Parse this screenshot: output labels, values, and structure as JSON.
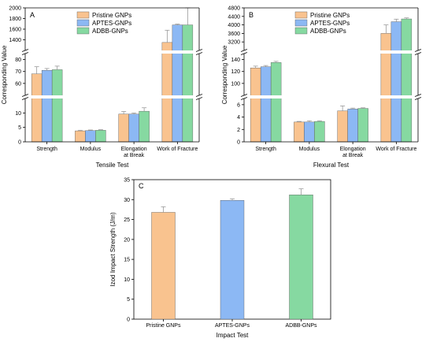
{
  "colors": {
    "Pristine GNPs": "#F9C38F",
    "APTES-GNPs": "#8CB8F4",
    "ADBB-GNPs": "#86D9A1",
    "axis": "#000000",
    "error": "#9a9a9a"
  },
  "chart_data": [
    {
      "type": "bar",
      "panel_label": "A",
      "xlabel": "Tensile Test",
      "ylabel": "Corresponding Value",
      "categories": [
        "Strength",
        "Modulus",
        "Elongation at Break",
        "Work of Fracture"
      ],
      "category_lines": [
        [
          "Strength"
        ],
        [
          "Modulus"
        ],
        [
          "Elongation",
          "at Break"
        ],
        [
          "Work of Fracture"
        ]
      ],
      "axis_break": true,
      "segments": [
        {
          "ylim": [
            0,
            15
          ],
          "ticks": [
            0,
            5,
            10
          ]
        },
        {
          "ylim": [
            50,
            85
          ],
          "ticks": [
            60,
            70,
            80
          ]
        },
        {
          "ylim": [
            1200,
            2000
          ],
          "ticks": [
            1400,
            1600,
            1800,
            2000
          ]
        }
      ],
      "legend": [
        "Pristine GNPs",
        "APTES-GNPs",
        "ADBB-GNPs"
      ],
      "legend_position": "top-center",
      "series": [
        {
          "name": "Pristine GNPs",
          "values": [
            68,
            3.8,
            9.6,
            1350
          ],
          "errors": [
            6,
            0.2,
            0.9,
            230
          ]
        },
        {
          "name": "APTES-GNPs",
          "values": [
            71,
            3.9,
            9.6,
            1680
          ],
          "errors": [
            1.5,
            0.2,
            0.4,
            15
          ]
        },
        {
          "name": "ADBB-GNPs",
          "values": [
            71.5,
            4.0,
            10.6,
            1680
          ],
          "errors": [
            3,
            0.2,
            1.2,
            320
          ]
        }
      ]
    },
    {
      "type": "bar",
      "panel_label": "B",
      "xlabel": "Flexural Test",
      "ylabel": "Corresponding Value",
      "categories": [
        "Strength",
        "Modulus",
        "Elongation at Break",
        "Work of Fracture"
      ],
      "category_lines": [
        [
          "Strength"
        ],
        [
          "Modulus"
        ],
        [
          "Elongation",
          "at Break"
        ],
        [
          "Work of Fracture"
        ]
      ],
      "axis_break": true,
      "segments": [
        {
          "ylim": [
            0,
            7
          ],
          "ticks": [
            0,
            2,
            4,
            6
          ]
        },
        {
          "ylim": [
            80,
            150
          ],
          "ticks": [
            100,
            120,
            140
          ]
        },
        {
          "ylim": [
            2800,
            4800
          ],
          "ticks": [
            3200,
            3600,
            4000,
            4400,
            4800
          ]
        }
      ],
      "legend": [
        "Pristine GNPs",
        "APTES-GNPs",
        "ADBB-GNPs"
      ],
      "legend_position": "top-center",
      "series": [
        {
          "name": "Pristine GNPs",
          "values": [
            126,
            3.2,
            5.0,
            3600
          ],
          "errors": [
            3,
            0.1,
            0.8,
            400
          ]
        },
        {
          "name": "APTES-GNPs",
          "values": [
            128,
            3.2,
            5.3,
            4150
          ],
          "errors": [
            2,
            0.2,
            0.15,
            120
          ]
        },
        {
          "name": "ADBB-GNPs",
          "values": [
            135,
            3.3,
            5.4,
            4280
          ],
          "errors": [
            2,
            0.1,
            0.1,
            50
          ]
        }
      ]
    },
    {
      "type": "bar",
      "panel_label": "C",
      "xlabel": "Impact Test",
      "ylabel": "Izod Impact Strength (J/m)",
      "categories": [
        "Pristine  GNPs",
        "APTES-GNPs",
        "ADBB-GNPs"
      ],
      "ylim": [
        0,
        35
      ],
      "ticks": [
        0,
        5,
        10,
        15,
        20,
        25,
        30,
        35
      ],
      "values": [
        26.8,
        29.8,
        31.2
      ],
      "errors": [
        1.4,
        0.4,
        1.5
      ],
      "bar_colors": [
        "Pristine GNPs",
        "APTES-GNPs",
        "ADBB-GNPs"
      ]
    }
  ]
}
